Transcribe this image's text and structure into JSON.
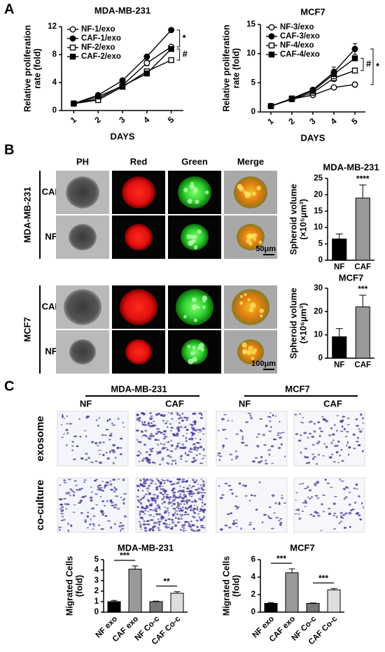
{
  "panel_labels": [
    "A",
    "B",
    "C"
  ],
  "panel_b": {
    "columns": [
      "PH",
      "Red",
      "Green",
      "Merge"
    ],
    "groups": [
      {
        "name": "MDA-MB-231",
        "rows": [
          "CAF",
          "NF"
        ],
        "scale_bar": "50μm"
      },
      {
        "name": "MCF7",
        "rows": [
          "CAF",
          "NF"
        ],
        "scale_bar": "100μm"
      }
    ]
  },
  "panel_c": {
    "groups": [
      {
        "name": "MDA-MB-231",
        "columns": [
          "NF",
          "CAF"
        ]
      },
      {
        "name": "MCF7",
        "columns": [
          "NF",
          "CAF"
        ]
      }
    ],
    "rows": [
      "exosome",
      "co-culture"
    ]
  },
  "chart_data": [
    {
      "type": "line",
      "title": "MDA-MB-231",
      "categories": [
        "1",
        "2",
        "3",
        "4",
        "5"
      ],
      "xlabel": "DAYS",
      "ylabel": [
        "Relative proliferation",
        "rate (fold)"
      ],
      "ylim": [
        0,
        12
      ],
      "yticks": [
        0,
        4,
        8,
        12
      ],
      "series": [
        {
          "name": "NF-1/exo",
          "color": "#000000",
          "marker": "circle",
          "filled": false,
          "values": [
            1,
            1.7,
            3.6,
            6.8,
            9.1
          ],
          "errors": [
            0.05,
            0.15,
            0.25,
            0.4,
            0.3
          ]
        },
        {
          "name": "CAF-1/exo",
          "color": "#000000",
          "marker": "circle",
          "filled": true,
          "values": [
            1,
            2.2,
            4.3,
            7.7,
            11.5
          ],
          "errors": [
            0.05,
            0.1,
            0.2,
            0.3,
            0.1
          ]
        },
        {
          "name": "NF-2/exo",
          "color": "#000000",
          "marker": "square",
          "filled": false,
          "values": [
            1,
            1.5,
            3.4,
            5.6,
            7.2
          ],
          "errors": [
            0.05,
            0.1,
            0.2,
            0.3,
            0.35
          ]
        },
        {
          "name": "CAF-2/exo",
          "color": "#000000",
          "marker": "square",
          "filled": true,
          "values": [
            1,
            2.0,
            3.5,
            5.3,
            8.8
          ],
          "errors": [
            0.05,
            0.1,
            0.2,
            0.3,
            0.3
          ]
        }
      ],
      "annotations": [
        "*",
        "#"
      ]
    },
    {
      "type": "line",
      "title": "MCF7",
      "categories": [
        "1",
        "2",
        "3",
        "4",
        "5"
      ],
      "xlabel": "DAYS",
      "ylabel": [
        "Relative proliferation",
        "rate (fold)"
      ],
      "ylim": [
        0,
        15
      ],
      "yticks": [
        0,
        5,
        10,
        15
      ],
      "series": [
        {
          "name": "NF-3/exo",
          "color": "#000000",
          "marker": "circle",
          "filled": false,
          "values": [
            1,
            2.2,
            2.9,
            4.2,
            4.7
          ],
          "errors": [
            0.05,
            0.15,
            0.2,
            0.3,
            0.4
          ]
        },
        {
          "name": "CAF-3/exo",
          "color": "#000000",
          "marker": "circle",
          "filled": true,
          "values": [
            1,
            2.3,
            3.8,
            6.8,
            10.8
          ],
          "errors": [
            0.05,
            0.15,
            0.3,
            0.9,
            0.9
          ]
        },
        {
          "name": "NF-4/exo",
          "color": "#000000",
          "marker": "square",
          "filled": false,
          "values": [
            1,
            2.2,
            3.3,
            5.8,
            7.1
          ],
          "errors": [
            0.05,
            0.15,
            0.2,
            0.6,
            0.3
          ]
        },
        {
          "name": "CAF-4/exo",
          "color": "#000000",
          "marker": "square",
          "filled": true,
          "values": [
            1,
            2.3,
            3.6,
            6.5,
            9.2
          ],
          "errors": [
            0.05,
            0.15,
            0.2,
            0.8,
            0.3
          ]
        }
      ],
      "annotations": [
        "#",
        "*"
      ]
    },
    {
      "type": "bar",
      "title": "MDA-MB-231",
      "categories": [
        "NF",
        "CAF"
      ],
      "values": [
        6.5,
        19
      ],
      "errors": [
        1.5,
        4
      ],
      "colors": [
        "#000000",
        "#999999"
      ],
      "ylabel": [
        "Spheroid volume",
        "(×10⁵μm³)"
      ],
      "ylim": [
        0,
        25
      ],
      "yticks": [
        0,
        5,
        10,
        15,
        20,
        25
      ],
      "annotations": [
        "****"
      ]
    },
    {
      "type": "bar",
      "title": "MCF7",
      "categories": [
        "NF",
        "CAF"
      ],
      "values": [
        9.2,
        22
      ],
      "errors": [
        3.5,
        5
      ],
      "colors": [
        "#000000",
        "#999999"
      ],
      "ylabel": [
        "Spheroid volume",
        "(×10⁶μm³)"
      ],
      "ylim": [
        0,
        30
      ],
      "yticks": [
        0,
        10,
        20,
        30
      ],
      "annotations": [
        "***"
      ]
    },
    {
      "type": "bar",
      "title": "MDA-MB-231",
      "categories": [
        "NF exo",
        "CAF exo",
        "NF Co-c",
        "CAF Co-c"
      ],
      "values": [
        1,
        4.1,
        1,
        1.8
      ],
      "errors": [
        0.12,
        0.3,
        0.05,
        0.15
      ],
      "colors": [
        "#000000",
        "#999999",
        "#777777",
        "#dddddd"
      ],
      "ylabel": [
        "Migrated Cells",
        "(fold)"
      ],
      "ylim": [
        0,
        5
      ],
      "yticks": [
        0,
        1,
        2,
        3,
        4,
        5
      ],
      "annotations": [
        "***",
        "**"
      ]
    },
    {
      "type": "bar",
      "title": "MCF7",
      "categories": [
        "NF exo",
        "CAF exo",
        "NF Co-c",
        "CAF Co-c"
      ],
      "values": [
        1,
        4.5,
        1,
        2.55
      ],
      "errors": [
        0.1,
        0.45,
        0.05,
        0.15
      ],
      "colors": [
        "#000000",
        "#999999",
        "#777777",
        "#dddddd"
      ],
      "ylabel": [
        "Migrated Cells",
        "(fold)"
      ],
      "ylim": [
        0,
        6
      ],
      "yticks": [
        0,
        2,
        4,
        6
      ],
      "annotations": [
        "***",
        "***"
      ]
    }
  ]
}
